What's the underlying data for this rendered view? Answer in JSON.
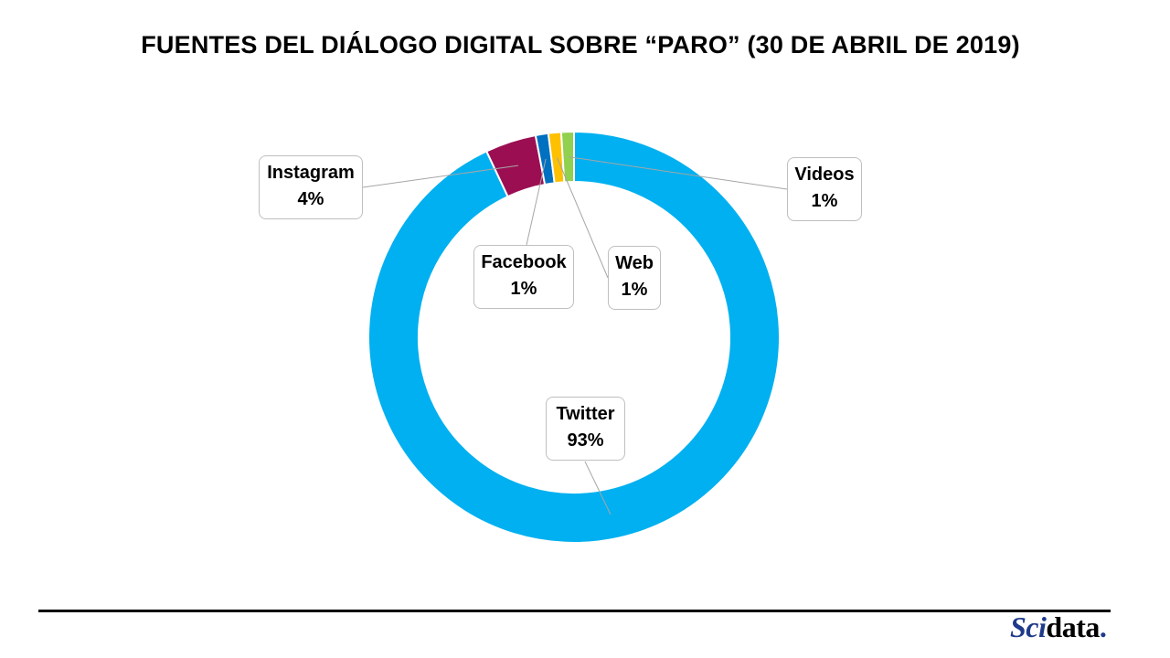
{
  "title": "FUENTES DEL DIÁLOGO DIGITAL SOBRE “PARO” (30 DE ABRIL DE 2019)",
  "chart_data": {
    "type": "pie",
    "subtype": "donut",
    "title": "FUENTES DEL DIÁLOGO DIGITAL SOBRE “PARO” (30 DE ABRIL DE 2019)",
    "slices": [
      {
        "name": "Twitter",
        "value": 93,
        "label": "93%",
        "color": "#00b0f0"
      },
      {
        "name": "Instagram",
        "value": 4,
        "label": "4%",
        "color": "#9b0f52"
      },
      {
        "name": "Facebook",
        "value": 1,
        "label": "1%",
        "color": "#0070c0"
      },
      {
        "name": "Web",
        "value": 1,
        "label": "1%",
        "color": "#ffc000"
      },
      {
        "name": "Videos",
        "value": 1,
        "label": "1%",
        "color": "#92d050"
      }
    ],
    "legend": "none"
  },
  "branding": {
    "logo_part1": "Sci",
    "logo_part2": "data",
    "logo_dot": "."
  }
}
